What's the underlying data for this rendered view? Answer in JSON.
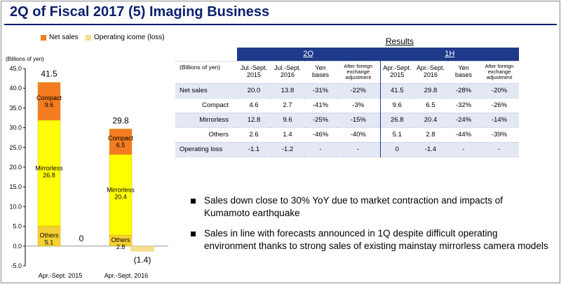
{
  "title": "2Q of Fiscal 2017 (5) Imaging Business",
  "legend": {
    "net_sales": "Net sales",
    "operating": "Operating icome (loss)"
  },
  "unit": "(Billions of yen)",
  "colors": {
    "compact": "#f47c20",
    "mirrorless": "#ffff00",
    "others": "#f5d033",
    "operating": "#f7dd8e",
    "header": "#1f3a8a"
  },
  "chart_data": {
    "type": "bar",
    "categories": [
      "Apr.-Sept. 2015",
      "Apr.-Sept. 2016"
    ],
    "ylim": [
      -5,
      45
    ],
    "yticks": [
      "45.0",
      "40.0",
      "35.0",
      "30.0",
      "25.0",
      "20.0",
      "15.0",
      "10.0",
      "5.0",
      "0.0",
      "-5.0"
    ],
    "series": [
      {
        "name": "Others",
        "values": [
          5.1,
          2.8
        ],
        "labels": [
          "Others\n5.1",
          "Others\n2.8"
        ]
      },
      {
        "name": "Mirrorless",
        "values": [
          26.8,
          20.4
        ],
        "labels": [
          "Mirrorless\n26.8",
          "Mirrorless\n20.4"
        ]
      },
      {
        "name": "Compact",
        "values": [
          9.6,
          6.5
        ],
        "labels": [
          "Compact\n9.6",
          "Compact\n6.5"
        ]
      }
    ],
    "totals": [
      "41.5",
      "29.8"
    ],
    "operating": {
      "values": [
        0,
        -1.4
      ],
      "labels": [
        "0",
        "(1.4)"
      ]
    }
  },
  "results": {
    "title": "Results",
    "unit": "(Billions of yen)",
    "group_2q": "2Q",
    "group_1h": "1H",
    "columns": [
      "Jul.-Sept.\n2015",
      "Jul.-Sept.\n2016",
      "Yen\nbases",
      "After foreign\nexchange\nadjustment",
      "Apr.-Sept.\n2015",
      "Apr.-Sept.\n2016",
      "Yen\nbases",
      "After foreign\nexchange\nadjustment"
    ],
    "rows": [
      {
        "label": "Net sales",
        "values": [
          "20.0",
          "13.8",
          "-31%",
          "-22%",
          "41.5",
          "29.8",
          "-28%",
          "-20%"
        ]
      },
      {
        "label": "Compact",
        "values": [
          "4.6",
          "2.7",
          "-41%",
          "-3%",
          "9.6",
          "6.5",
          "-32%",
          "-26%"
        ]
      },
      {
        "label": "Mirrorless",
        "values": [
          "12.8",
          "9.6",
          "-25%",
          "-15%",
          "26.8",
          "20.4",
          "-24%",
          "-14%"
        ]
      },
      {
        "label": "Others",
        "values": [
          "2.6",
          "1.4",
          "-46%",
          "-40%",
          "5.1",
          "2.8",
          "-44%",
          "-39%"
        ]
      },
      {
        "label": "Operating loss",
        "values": [
          "-1.1",
          "-1.2",
          "-",
          "-",
          "0",
          "-1.4",
          "-",
          "-"
        ]
      }
    ]
  },
  "bullets": [
    "Sales down close to 30% YoY due to market contraction and impacts of Kumamoto earthquake",
    "Sales in line with forecasts announced in 1Q despite difficult operating environment thanks to strong sales of existing mainstay mirrorless camera models"
  ]
}
